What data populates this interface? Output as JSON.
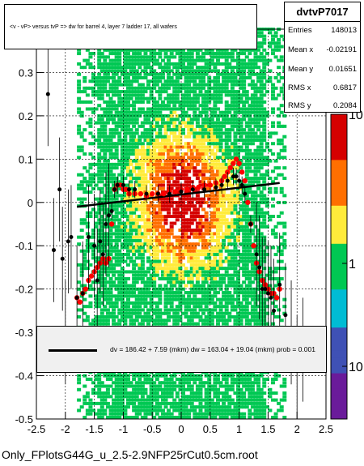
{
  "title": "<v - vP>       versus  tvP =>  dw for barrel 4, layer 7 ladder 17, all wafers",
  "stats": {
    "name": "dvtvP7017",
    "rows": [
      {
        "label": "Entries",
        "value": "148013"
      },
      {
        "label": "Mean x",
        "value": "-0.02191"
      },
      {
        "label": "Mean y",
        "value": "0.01651"
      },
      {
        "label": "RMS x",
        "value": "0.6817"
      },
      {
        "label": "RMS y",
        "value": "0.2084"
      }
    ]
  },
  "fit_text": "dv =  186.42 +  7.59 (mkm) dw =  163.04 + 19.04 (mkm) prob = 0.001",
  "footer": "Only_FPlotsG44G_u_2.5-2.9NFP25rCut0.5cm.root",
  "chart_data": {
    "type": "heatmap",
    "xlim": [
      -2.5,
      2.5
    ],
    "ylim": [
      -0.5,
      0.4
    ],
    "x_ticks": [
      "-2.5",
      "-2",
      "-1.5",
      "-1",
      "-0.5",
      "0",
      "0.5",
      "1",
      "1.5",
      "2",
      "2.5"
    ],
    "y_ticks": [
      "-0.5",
      "-0.4",
      "-0.3",
      "-0.2",
      "-0.1",
      "0",
      "0.1",
      "0.2",
      "0.3"
    ],
    "z_ticks": [
      "10",
      "1",
      "10"
    ],
    "grid": true,
    "colors": {
      "low": "#00c853",
      "mid": "#ffeb3b",
      "high": "#ff6f00",
      "peak": "#d50000",
      "red_points": "#ff0000",
      "black_points": "#000000"
    },
    "red_profile": {
      "x": [
        -1.8,
        -1.75,
        -1.7,
        -1.65,
        -1.6,
        -1.55,
        -1.5,
        -1.45,
        -1.4,
        -1.35,
        -1.3,
        -1.25,
        -1.2,
        -1.15,
        -1.1,
        -1.05,
        -1.0,
        -0.95,
        -0.9,
        -0.8,
        -0.7,
        -0.6,
        -0.5,
        -0.4,
        -0.3,
        -0.2,
        -0.1,
        0.0,
        0.1,
        0.2,
        0.3,
        0.4,
        0.5,
        0.6,
        0.7,
        0.75,
        0.8,
        0.85,
        0.9,
        0.95,
        1.0,
        1.05,
        1.1,
        1.15,
        1.2,
        1.25,
        1.3,
        1.35,
        1.4,
        1.45,
        1.5,
        1.55,
        1.6,
        1.65,
        1.7
      ],
      "y": [
        -0.22,
        -0.23,
        -0.21,
        -0.2,
        -0.18,
        -0.17,
        -0.16,
        -0.15,
        -0.14,
        -0.13,
        -0.14,
        -0.13,
        -0.05,
        0.03,
        0.04,
        0.04,
        0.03,
        0.03,
        0.02,
        0.02,
        0.02,
        0.015,
        0.02,
        0.02,
        0.02,
        0.025,
        0.025,
        0.03,
        0.03,
        0.035,
        0.035,
        0.04,
        0.04,
        0.045,
        0.05,
        0.06,
        0.07,
        0.08,
        0.09,
        0.1,
        0.09,
        0.07,
        0.05,
        0.0,
        -0.05,
        -0.1,
        -0.14,
        -0.16,
        -0.18,
        -0.19,
        -0.2,
        -0.21,
        -0.21,
        -0.22,
        -0.2
      ]
    },
    "black_profile": {
      "x": [
        -2.3,
        -2.2,
        -2.1,
        -2.05,
        -2.0,
        -1.95,
        -1.9,
        -1.8,
        -1.7,
        -1.6,
        -1.5,
        -1.45,
        -1.4,
        -1.35,
        -1.3,
        -1.25,
        -1.2,
        -1.15,
        -1.1,
        -1.0,
        -0.9,
        -0.8,
        -0.6,
        -0.4,
        -0.2,
        0.0,
        0.2,
        0.4,
        0.6,
        0.7,
        0.8,
        0.9,
        0.95,
        1.0,
        1.05,
        1.1,
        1.2,
        1.3,
        1.35,
        1.4,
        1.45,
        1.5,
        1.55,
        1.6,
        1.7,
        1.8,
        1.9,
        2.0,
        2.1
      ],
      "y": [
        0.25,
        -0.11,
        0.03,
        -0.13,
        -0.3,
        -0.09,
        -0.08,
        -0.22,
        -0.21,
        -0.08,
        -0.1,
        -0.18,
        -0.09,
        -0.12,
        -0.05,
        -0.03,
        -0.02,
        0.03,
        0.04,
        0.04,
        0.03,
        0.03,
        0.02,
        0.02,
        0.02,
        0.025,
        0.03,
        0.03,
        0.035,
        0.04,
        0.05,
        0.06,
        0.06,
        0.05,
        0.04,
        0.02,
        -0.05,
        -0.12,
        -0.15,
        -0.2,
        -0.2,
        -0.21,
        -0.22,
        -0.25,
        -0.19,
        -0.26,
        -0.3,
        -0.38,
        -0.34
      ]
    },
    "fit_line": {
      "x": [
        -1.8,
        1.7
      ],
      "y": [
        -0.01,
        0.045
      ]
    }
  }
}
